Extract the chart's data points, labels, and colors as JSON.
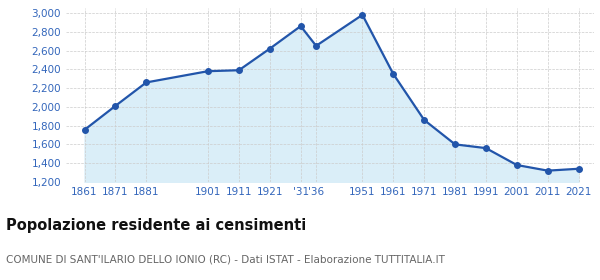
{
  "years": [
    1861,
    1871,
    1881,
    1901,
    1911,
    1921,
    1931,
    1936,
    1951,
    1961,
    1971,
    1981,
    1991,
    2001,
    2011,
    2021
  ],
  "population": [
    1756,
    2011,
    2261,
    2381,
    2391,
    2621,
    2861,
    2651,
    2981,
    2351,
    1861,
    1601,
    1561,
    1381,
    1321,
    1341
  ],
  "xtick_positions": [
    1861,
    1871,
    1881,
    1901,
    1911,
    1921,
    1931,
    1936,
    1951,
    1961,
    1971,
    1981,
    1991,
    2001,
    2011,
    2021
  ],
  "xtick_labels": [
    "1861",
    "1871",
    "1881",
    "1901",
    "1911",
    "1921",
    "'31",
    "'36",
    "1951",
    "1961",
    "1971",
    "1981",
    "1991",
    "2001",
    "2011",
    "2021"
  ],
  "line_color": "#2255aa",
  "fill_color": "#daeef8",
  "marker_size": 4,
  "line_width": 1.6,
  "ylim": [
    1200,
    3050
  ],
  "yticks": [
    1200,
    1400,
    1600,
    1800,
    2000,
    2200,
    2400,
    2600,
    2800,
    3000
  ],
  "grid_color": "#cccccc",
  "bg_color": "#ffffff",
  "title": "Popolazione residente ai censimenti",
  "subtitle": "COMUNE DI SANT'ILARIO DELLO IONIO (RC) - Dati ISTAT - Elaborazione TUTTITALIA.IT",
  "title_fontsize": 10.5,
  "subtitle_fontsize": 7.5,
  "title_color": "#111111",
  "subtitle_color": "#666666",
  "axis_label_color": "#3366bb",
  "tick_fontsize": 7.5,
  "xlim_left": 1855,
  "xlim_right": 2026
}
